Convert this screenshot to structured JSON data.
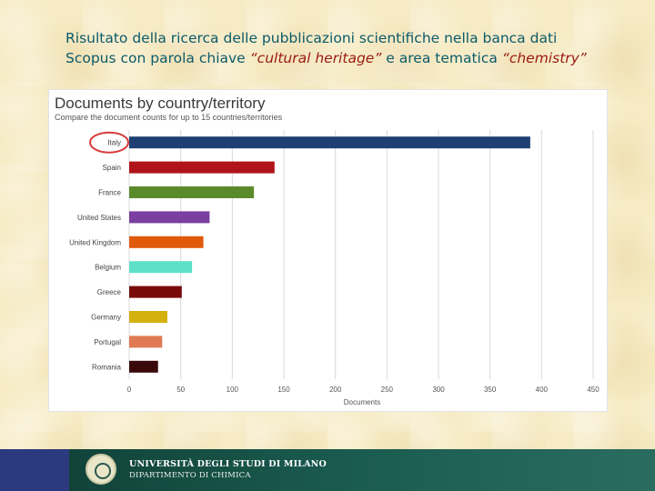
{
  "slide": {
    "title_line1": "Risultato della ricerca delle pubblicazioni scientifiche nella banca dati",
    "title_line2_a": "Scopus  con parola chiave ",
    "title_keyword1": "“cultural heritage”",
    "title_line2_b": " e area tematica ",
    "title_keyword2": "“chemistry”"
  },
  "chart_data": {
    "type": "bar",
    "orientation": "horizontal",
    "title": "Documents by country/territory",
    "subtitle": "Compare the document counts for up to 15 countries/territories",
    "xlabel": "Documents",
    "ylabel": "",
    "xlim": [
      0,
      450
    ],
    "xticks": [
      0,
      50,
      100,
      150,
      200,
      250,
      300,
      350,
      400,
      450
    ],
    "grid": true,
    "categories": [
      "Italy",
      "Spain",
      "France",
      "United States",
      "United Kingdom",
      "Belgium",
      "Greece",
      "Germany",
      "Portugal",
      "Romania"
    ],
    "values": [
      389,
      141,
      121,
      78,
      72,
      61,
      51,
      37,
      32,
      28
    ],
    "colors": [
      "#1d3f73",
      "#b0141a",
      "#5b8a2a",
      "#7a3fa0",
      "#e05a0c",
      "#5ee0c8",
      "#7a0a0a",
      "#d4b00c",
      "#e07a55",
      "#3a0a0a"
    ],
    "highlight": "Italy",
    "highlight_color": "#d83a3a"
  },
  "footer": {
    "university": "UNIVERSITÀ DEGLI STUDI DI MILANO",
    "department": "DIPARTIMENTO DI CHIMICA",
    "colors": {
      "bar": "#1b5c50",
      "edge": "#2b3a7e"
    }
  }
}
